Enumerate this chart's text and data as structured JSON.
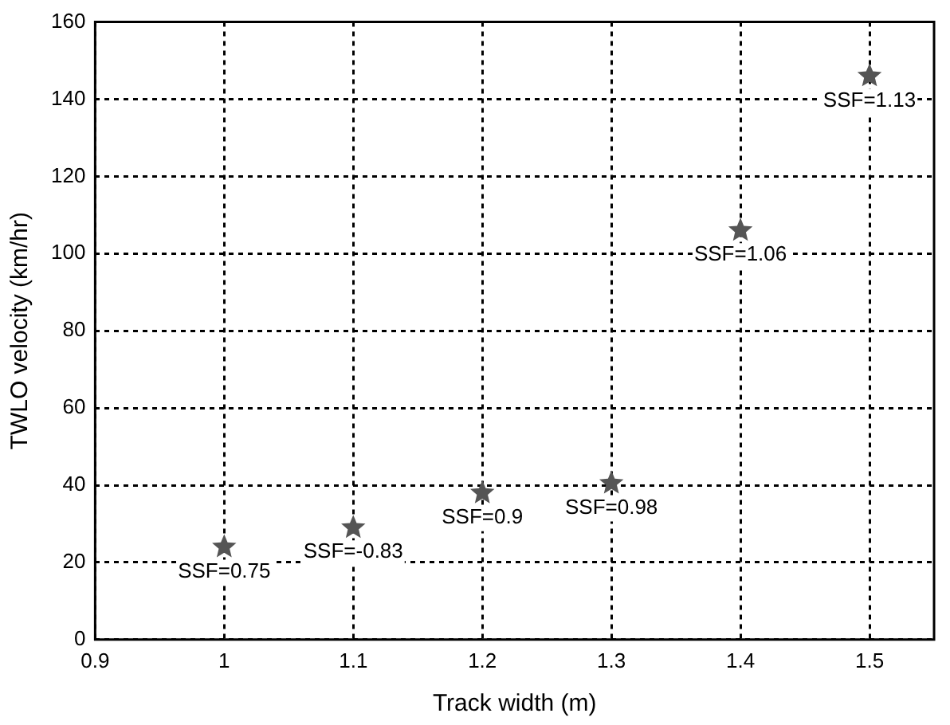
{
  "chart_data": {
    "type": "scatter",
    "xlabel": "Track width (m)",
    "ylabel": "TWLO velocity (km/hr)",
    "x": [
      1,
      1.1,
      1.2,
      1.3,
      1.4,
      1.5
    ],
    "series": [
      {
        "color": "#555555",
        "values": [
          24,
          29,
          38,
          40.5,
          106,
          146
        ]
      }
    ],
    "xlim": [
      0.9,
      1.55
    ],
    "xticks": [
      0.9,
      1,
      1.1,
      1.2,
      1.3,
      1.4,
      1.5
    ],
    "ylim": [
      0,
      160
    ],
    "yticks": [
      0,
      20,
      40,
      60,
      80,
      100,
      120,
      140,
      160
    ],
    "grid": true,
    "marker": "star",
    "legend": false,
    "annotations": [
      {
        "text": "SSF=0.75",
        "x": 1,
        "y": 24
      },
      {
        "text": "SSF=-0.83",
        "x": 1.1,
        "y": 29
      },
      {
        "text": "SSF=0.9",
        "x": 1.2,
        "y": 38
      },
      {
        "text": "SSF=0.98",
        "x": 1.3,
        "y": 40.5
      },
      {
        "text": "SSF=1.06",
        "x": 1.4,
        "y": 106
      },
      {
        "text": "SSF=1.13",
        "x": 1.5,
        "y": 146
      }
    ]
  }
}
